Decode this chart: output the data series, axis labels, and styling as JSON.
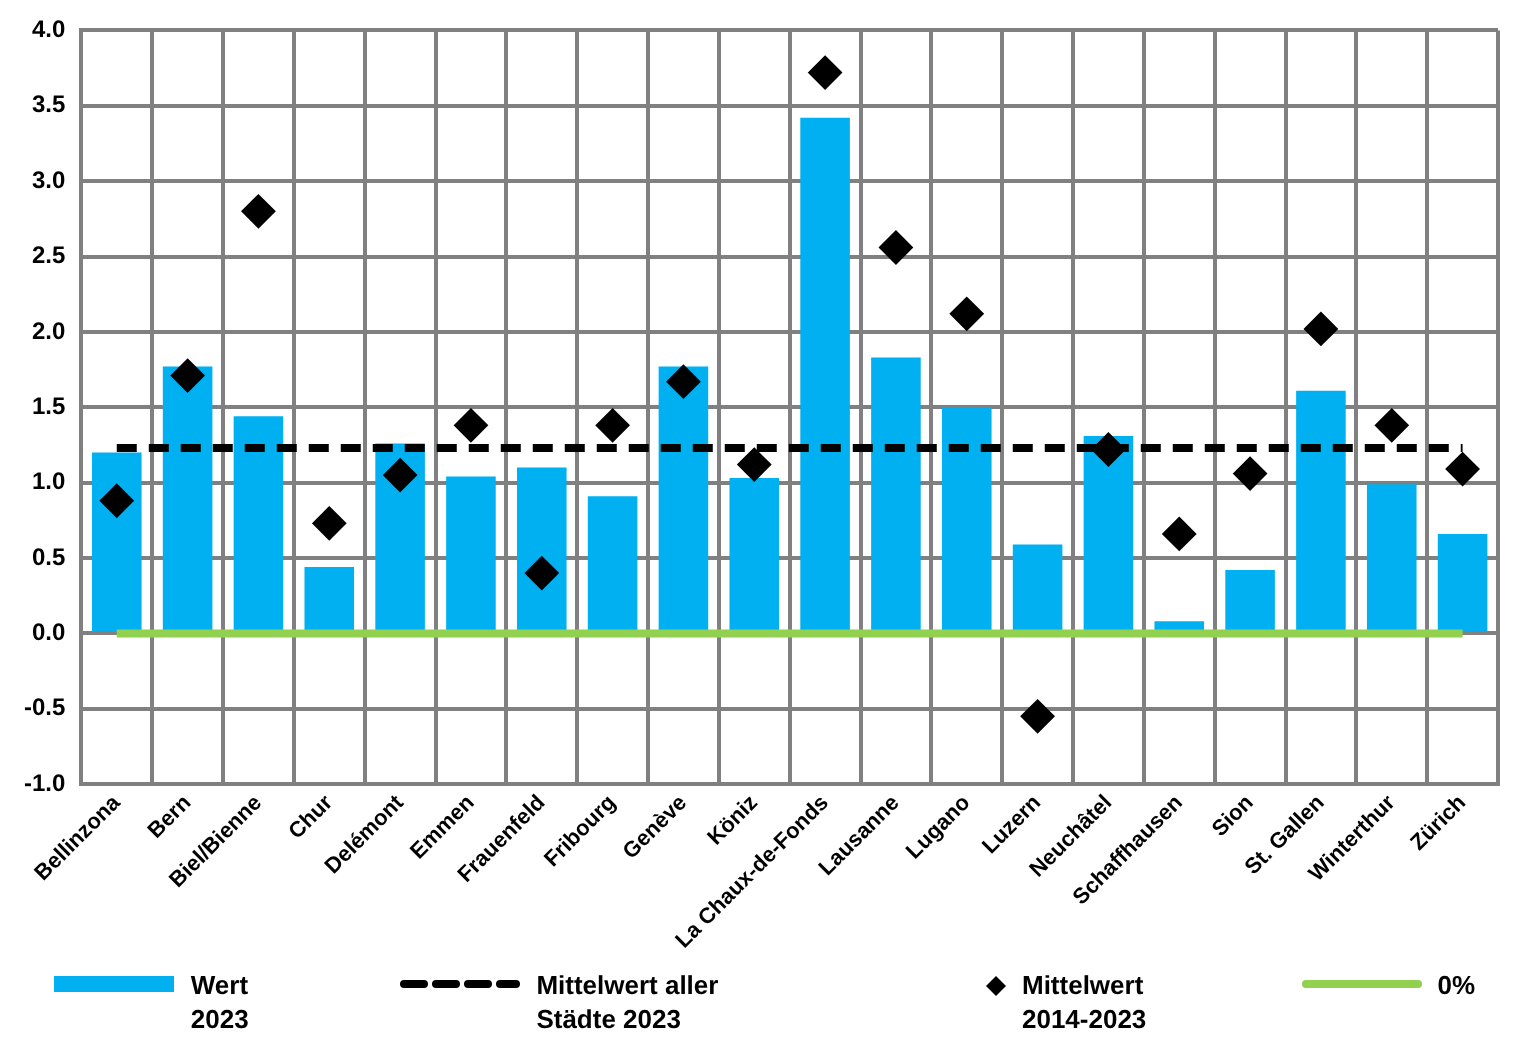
{
  "chart_data": {
    "type": "bar",
    "categories": [
      "Bellinzona",
      "Bern",
      "Biel/Bienne",
      "Chur",
      "Delémont",
      "Emmen",
      "Frauenfeld",
      "Fribourg",
      "Genève",
      "Köniz",
      "La Chaux-de-Fonds",
      "Lausanne",
      "Lugano",
      "Luzern",
      "Neuchâtel",
      "Schaffhausen",
      "Sion",
      "St. Gallen",
      "Winterthur",
      "Zürich"
    ],
    "series": [
      {
        "name": "Wert 2023",
        "color": "#00b0f0",
        "values": [
          1.2,
          1.77,
          1.44,
          0.44,
          1.26,
          1.04,
          1.1,
          0.91,
          1.77,
          1.03,
          3.42,
          1.83,
          1.5,
          0.59,
          1.31,
          0.08,
          0.42,
          1.61,
          0.99,
          0.66
        ]
      },
      {
        "name": "Mittelwert aller Städte 2023",
        "type": "line",
        "line_style": "dashed",
        "marker": "none",
        "color": "#000000",
        "values": [
          1.23,
          1.23,
          1.23,
          1.23,
          1.23,
          1.23,
          1.23,
          1.23,
          1.23,
          1.23,
          1.23,
          1.23,
          1.23,
          1.23,
          1.23,
          1.23,
          1.23,
          1.23,
          1.23,
          1.23
        ]
      },
      {
        "name": "Mittelwert 2014-2023",
        "type": "scatter",
        "marker": "diamond",
        "color": "#000000",
        "values": [
          0.88,
          1.71,
          2.8,
          0.73,
          1.05,
          1.38,
          0.4,
          1.38,
          1.67,
          1.12,
          3.72,
          2.56,
          2.12,
          -0.55,
          1.22,
          0.66,
          1.06,
          2.02,
          1.38,
          1.09
        ]
      },
      {
        "name": "0%",
        "type": "line",
        "line_style": "solid",
        "marker": "none",
        "color": "#92d050",
        "values": [
          0,
          0,
          0,
          0,
          0,
          0,
          0,
          0,
          0,
          0,
          0,
          0,
          0,
          0,
          0,
          0,
          0,
          0,
          0,
          0
        ]
      }
    ],
    "ylim": [
      -1,
      4
    ],
    "yticks": [
      {
        "value": -1,
        "label": "-1.0"
      },
      -0.5,
      {
        "value": 0,
        "label": "0.0"
      },
      0.5,
      {
        "value": 1,
        "label": "1.0"
      },
      1.5,
      {
        "value": 2,
        "label": "2.0"
      },
      2.5,
      {
        "value": 3,
        "label": "3.0"
      },
      3.5,
      {
        "value": 4,
        "label": "4.0"
      }
    ],
    "grid": true,
    "legend": "bottom"
  }
}
